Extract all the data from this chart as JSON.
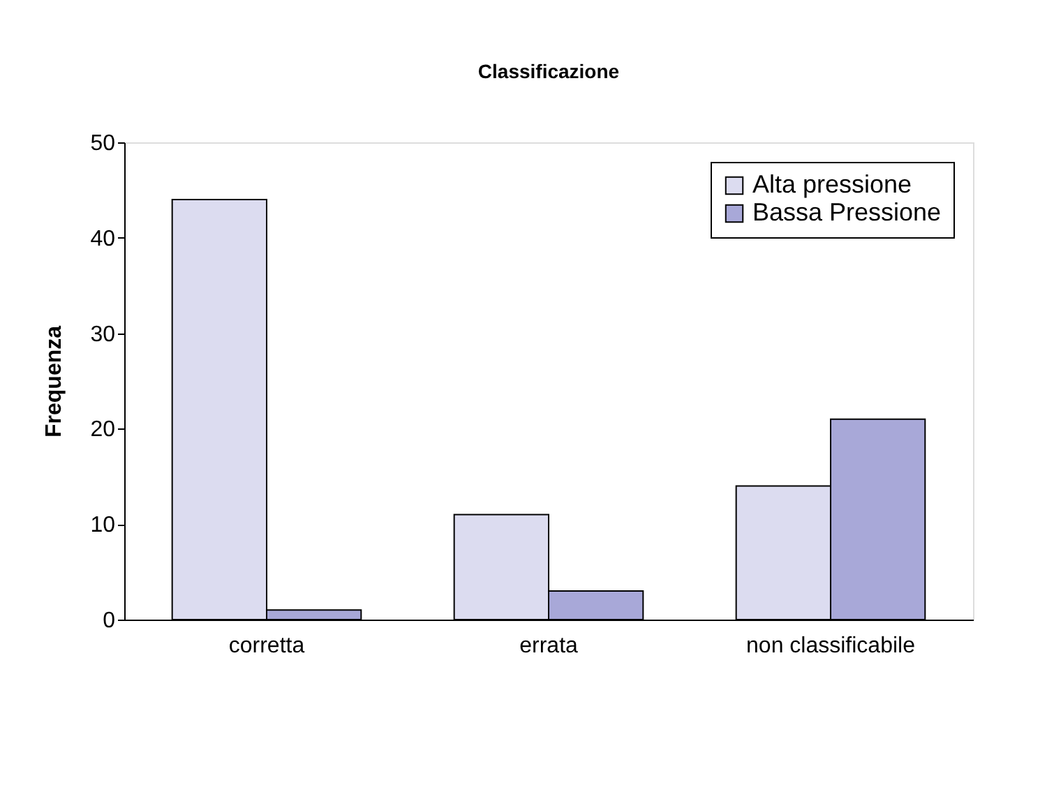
{
  "chart_data": {
    "type": "bar",
    "title": "Classificazione",
    "ylabel": "Frequenza",
    "categories": [
      "corretta",
      "errata",
      "non classificabile"
    ],
    "series": [
      {
        "name": "Alta pressione",
        "color": "#dcdcf0",
        "values": [
          44,
          11,
          14
        ]
      },
      {
        "name": "Bassa Pressione",
        "color": "#a8a8d8",
        "values": [
          1,
          3,
          21
        ]
      }
    ],
    "ylim": [
      0,
      50
    ],
    "yticks": [
      0,
      10,
      20,
      30,
      40,
      50
    ],
    "grid": false,
    "legend": "top right"
  }
}
